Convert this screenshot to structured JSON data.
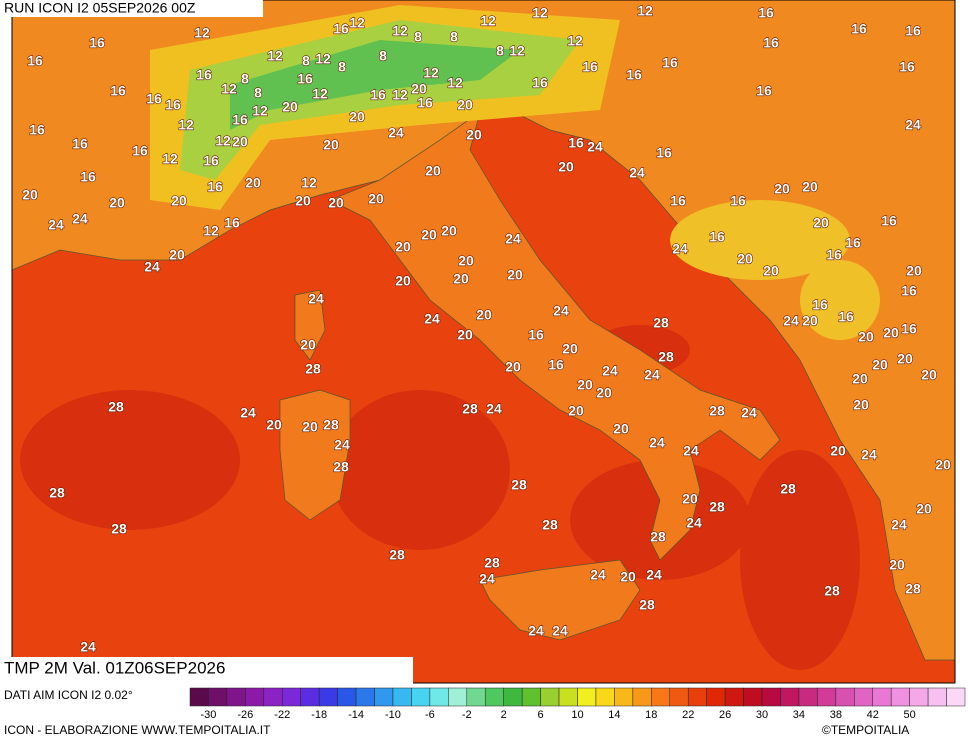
{
  "header": {
    "run": "RUN ICON I2 05SEP2026 00Z"
  },
  "map": {
    "labels": [
      "16",
      "16",
      "12",
      "16",
      "12",
      "12",
      "8",
      "8",
      "12",
      "12",
      "8",
      "12",
      "12",
      "12",
      "16",
      "16",
      "16",
      "16",
      "12",
      "8",
      "12",
      "8",
      "16",
      "8",
      "12",
      "12",
      "20",
      "12",
      "16",
      "12",
      "20",
      "8",
      "8",
      "12",
      "16",
      "16",
      "16",
      "16",
      "16",
      "12",
      "12",
      "12",
      "20",
      "16",
      "12",
      "16",
      "16",
      "16",
      "20",
      "24",
      "16",
      "20",
      "16",
      "16",
      "16",
      "16",
      "16",
      "16",
      "24",
      "20",
      "16",
      "24",
      "20",
      "16",
      "24",
      "20",
      "20",
      "20",
      "12",
      "16",
      "20",
      "20",
      "16",
      "20",
      "24",
      "24",
      "20",
      "20",
      "20",
      "12",
      "16",
      "20",
      "24",
      "20",
      "20",
      "20",
      "20",
      "24",
      "20",
      "20",
      "20",
      "24",
      "24",
      "20",
      "24",
      "20",
      "16",
      "20",
      "16",
      "20",
      "20",
      "20",
      "24",
      "24",
      "28",
      "28",
      "24",
      "16",
      "20",
      "20",
      "16",
      "16",
      "20",
      "20",
      "16",
      "16",
      "20",
      "16",
      "20",
      "16",
      "24",
      "20",
      "16",
      "16",
      "20",
      "20",
      "16",
      "20",
      "20",
      "20",
      "20",
      "20",
      "20",
      "28",
      "28",
      "24",
      "20",
      "20",
      "28",
      "24",
      "28",
      "28",
      "24",
      "20",
      "20",
      "24",
      "28",
      "24",
      "24",
      "20",
      "24",
      "20",
      "28",
      "28",
      "28",
      "20",
      "28",
      "24",
      "20",
      "28",
      "28",
      "28",
      "24",
      "28",
      "28",
      "24",
      "20",
      "24",
      "20",
      "24",
      "28",
      "28",
      "28",
      "24",
      "24",
      "24"
    ]
  },
  "footer": {
    "variable": "TMP 2M Val. 01Z06SEP2026",
    "source": "DATI AIM ICON I2 0.02°",
    "credit": "ICON - ELABORAZIONE WWW.TEMPOITALIA.IT",
    "copyright": "©TEMPOITALIA"
  },
  "colorbar": {
    "ticks": [
      -30,
      -26,
      -22,
      -18,
      -14,
      -10,
      -6,
      -2,
      2,
      6,
      10,
      14,
      18,
      22,
      26,
      30,
      34,
      38,
      42,
      50
    ],
    "colors": [
      "#5a0a4a",
      "#6e0f6a",
      "#80148a",
      "#8c1aa8",
      "#8a22c4",
      "#7a28d8",
      "#5a2ee0",
      "#3a3ae6",
      "#2a58e6",
      "#2a78ea",
      "#3098ee",
      "#38b8f0",
      "#48d4f0",
      "#70e8e8",
      "#a0f0d8",
      "#70d890",
      "#50c860",
      "#40b840",
      "#60c030",
      "#98d030",
      "#c8e020",
      "#f0f020",
      "#f8d818",
      "#f8b818",
      "#f89818",
      "#f87818",
      "#f05a10",
      "#e8400c",
      "#e02808",
      "#d01810",
      "#c00c20",
      "#b80a40",
      "#c01860",
      "#c82a80",
      "#d03c98",
      "#d850b0",
      "#e064c4",
      "#e878d4",
      "#f090e0",
      "#f4a8e8",
      "#f8c0f0",
      "#fcd8f8"
    ]
  }
}
